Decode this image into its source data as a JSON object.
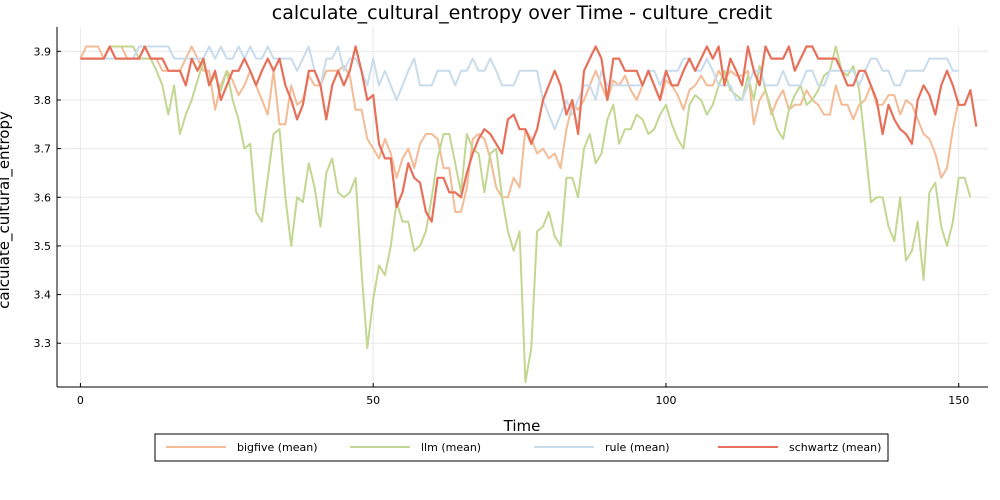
{
  "chart_data": {
    "type": "line",
    "title": "calculate_cultural_entropy over Time - culture_credit",
    "xlabel": "Time",
    "ylabel": "calculate_cultural_entropy",
    "xlim": [
      -4,
      155
    ],
    "ylim": [
      3.21,
      3.95
    ],
    "xticks": [
      0,
      50,
      100,
      150
    ],
    "yticks": [
      3.3,
      3.4,
      3.5,
      3.6,
      3.7,
      3.8,
      3.9
    ],
    "grid": true,
    "legend_position": "bottom",
    "series": [
      {
        "name": "bigfive (mean)",
        "color": "#f4bb95",
        "values": [
          3.885,
          3.91,
          3.91,
          3.91,
          3.885,
          3.91,
          3.91,
          3.91,
          3.885,
          3.885,
          3.885,
          3.885,
          3.885,
          3.885,
          3.86,
          3.86,
          3.86,
          3.86,
          3.885,
          3.91,
          3.885,
          3.86,
          3.86,
          3.78,
          3.83,
          3.86,
          3.84,
          3.81,
          3.83,
          3.86,
          3.83,
          3.8,
          3.77,
          3.86,
          3.75,
          3.75,
          3.83,
          3.79,
          3.8,
          3.85,
          3.83,
          3.83,
          3.86,
          3.86,
          3.86,
          3.87,
          3.85,
          3.78,
          3.78,
          3.72,
          3.7,
          3.68,
          3.72,
          3.69,
          3.64,
          3.68,
          3.7,
          3.66,
          3.71,
          3.73,
          3.73,
          3.72,
          3.66,
          3.66,
          3.57,
          3.57,
          3.62,
          3.72,
          3.73,
          3.72,
          3.68,
          3.62,
          3.6,
          3.6,
          3.64,
          3.62,
          3.74,
          3.72,
          3.69,
          3.7,
          3.68,
          3.69,
          3.66,
          3.74,
          3.79,
          3.78,
          3.8,
          3.83,
          3.86,
          3.83,
          3.8,
          3.84,
          3.83,
          3.85,
          3.82,
          3.8,
          3.83,
          3.86,
          3.83,
          3.8,
          3.84,
          3.83,
          3.81,
          3.78,
          3.82,
          3.83,
          3.85,
          3.83,
          3.83,
          3.86,
          3.84,
          3.86,
          3.85,
          3.85,
          3.86,
          3.75,
          3.8,
          3.82,
          3.77,
          3.8,
          3.82,
          3.78,
          3.79,
          3.79,
          3.82,
          3.8,
          3.79,
          3.77,
          3.77,
          3.83,
          3.79,
          3.79,
          3.76,
          3.79,
          3.8,
          3.83,
          3.79,
          3.79,
          3.81,
          3.81,
          3.77,
          3.8,
          3.79,
          3.76,
          3.73,
          3.72,
          3.69,
          3.64,
          3.66,
          3.74,
          3.8
        ]
      },
      {
        "name": "llm (mean)",
        "color": "#c2d791",
        "values": [
          3.885,
          3.885,
          3.885,
          3.885,
          3.885,
          3.91,
          3.91,
          3.91,
          3.91,
          3.91,
          3.885,
          3.885,
          3.885,
          3.86,
          3.83,
          3.77,
          3.83,
          3.73,
          3.77,
          3.8,
          3.84,
          3.88,
          3.83,
          3.85,
          3.82,
          3.86,
          3.8,
          3.76,
          3.7,
          3.71,
          3.57,
          3.55,
          3.64,
          3.73,
          3.74,
          3.6,
          3.5,
          3.6,
          3.59,
          3.67,
          3.62,
          3.54,
          3.65,
          3.68,
          3.61,
          3.6,
          3.61,
          3.64,
          3.45,
          3.29,
          3.39,
          3.46,
          3.44,
          3.5,
          3.59,
          3.55,
          3.55,
          3.49,
          3.5,
          3.53,
          3.6,
          3.68,
          3.73,
          3.73,
          3.67,
          3.61,
          3.73,
          3.7,
          3.69,
          3.61,
          3.69,
          3.7,
          3.6,
          3.53,
          3.49,
          3.53,
          3.22,
          3.29,
          3.53,
          3.54,
          3.57,
          3.52,
          3.5,
          3.64,
          3.64,
          3.6,
          3.7,
          3.73,
          3.67,
          3.69,
          3.76,
          3.79,
          3.71,
          3.74,
          3.74,
          3.77,
          3.76,
          3.73,
          3.74,
          3.77,
          3.79,
          3.75,
          3.72,
          3.7,
          3.79,
          3.81,
          3.8,
          3.77,
          3.79,
          3.83,
          3.86,
          3.82,
          3.81,
          3.8,
          3.85,
          3.8,
          3.87,
          3.82,
          3.78,
          3.74,
          3.72,
          3.78,
          3.81,
          3.83,
          3.79,
          3.8,
          3.82,
          3.85,
          3.86,
          3.91,
          3.86,
          3.85,
          3.87,
          3.82,
          3.71,
          3.59,
          3.6,
          3.6,
          3.54,
          3.51,
          3.6,
          3.47,
          3.49,
          3.55,
          3.43,
          3.61,
          3.63,
          3.54,
          3.5,
          3.55,
          3.64,
          3.64,
          3.6
        ]
      },
      {
        "name": "rule (mean)",
        "color": "#c8dcec",
        "values": [
          3.885,
          3.885,
          3.885,
          3.885,
          3.885,
          3.885,
          3.885,
          3.885,
          3.885,
          3.885,
          3.91,
          3.91,
          3.91,
          3.91,
          3.91,
          3.91,
          3.885,
          3.885,
          3.885,
          3.885,
          3.885,
          3.885,
          3.91,
          3.885,
          3.91,
          3.885,
          3.885,
          3.91,
          3.885,
          3.91,
          3.885,
          3.885,
          3.91,
          3.885,
          3.885,
          3.885,
          3.885,
          3.86,
          3.885,
          3.91,
          3.86,
          3.83,
          3.885,
          3.885,
          3.91,
          3.86,
          3.885,
          3.885,
          3.86,
          3.83,
          3.885,
          3.83,
          3.86,
          3.83,
          3.8,
          3.83,
          3.86,
          3.885,
          3.83,
          3.83,
          3.83,
          3.86,
          3.86,
          3.86,
          3.83,
          3.86,
          3.86,
          3.885,
          3.86,
          3.86,
          3.885,
          3.86,
          3.83,
          3.83,
          3.83,
          3.86,
          3.86,
          3.86,
          3.86,
          3.8,
          3.77,
          3.74,
          3.77,
          3.8,
          3.77,
          3.8,
          3.83,
          3.83,
          3.8,
          3.86,
          3.83,
          3.83,
          3.83,
          3.83,
          3.83,
          3.83,
          3.83,
          3.86,
          3.86,
          3.83,
          3.86,
          3.86,
          3.86,
          3.885,
          3.885,
          3.86,
          3.86,
          3.885,
          3.86,
          3.83,
          3.83,
          3.83,
          3.8,
          3.8,
          3.83,
          3.86,
          3.86,
          3.83,
          3.83,
          3.83,
          3.86,
          3.83,
          3.83,
          3.83,
          3.86,
          3.86,
          3.83,
          3.83,
          3.86,
          3.86,
          3.86,
          3.86,
          3.86,
          3.83,
          3.86,
          3.885,
          3.885,
          3.86,
          3.86,
          3.83,
          3.83,
          3.86,
          3.86,
          3.86,
          3.86,
          3.885,
          3.885,
          3.885,
          3.885,
          3.86,
          3.86
        ]
      },
      {
        "name": "schwartz (mean)",
        "color": "#e7705a",
        "values": [
          3.885,
          3.885,
          3.885,
          3.885,
          3.885,
          3.91,
          3.885,
          3.885,
          3.885,
          3.885,
          3.885,
          3.91,
          3.885,
          3.885,
          3.885,
          3.86,
          3.86,
          3.86,
          3.83,
          3.885,
          3.86,
          3.885,
          3.83,
          3.86,
          3.8,
          3.83,
          3.86,
          3.86,
          3.885,
          3.86,
          3.83,
          3.86,
          3.885,
          3.86,
          3.885,
          3.83,
          3.8,
          3.76,
          3.79,
          3.86,
          3.86,
          3.83,
          3.76,
          3.83,
          3.86,
          3.83,
          3.86,
          3.91,
          3.86,
          3.8,
          3.81,
          3.71,
          3.68,
          3.68,
          3.58,
          3.61,
          3.67,
          3.64,
          3.63,
          3.57,
          3.55,
          3.64,
          3.64,
          3.61,
          3.61,
          3.6,
          3.65,
          3.69,
          3.72,
          3.74,
          3.73,
          3.71,
          3.69,
          3.76,
          3.77,
          3.74,
          3.74,
          3.71,
          3.74,
          3.8,
          3.83,
          3.86,
          3.83,
          3.77,
          3.8,
          3.73,
          3.86,
          3.885,
          3.91,
          3.885,
          3.8,
          3.885,
          3.885,
          3.86,
          3.86,
          3.86,
          3.83,
          3.86,
          3.83,
          3.8,
          3.86,
          3.83,
          3.83,
          3.86,
          3.885,
          3.86,
          3.885,
          3.91,
          3.885,
          3.91,
          3.83,
          3.885,
          3.86,
          3.83,
          3.91,
          3.86,
          3.83,
          3.91,
          3.885,
          3.885,
          3.885,
          3.91,
          3.86,
          3.885,
          3.91,
          3.91,
          3.885,
          3.885,
          3.885,
          3.885,
          3.86,
          3.83,
          3.83,
          3.86,
          3.86,
          3.83,
          3.8,
          3.73,
          3.79,
          3.76,
          3.74,
          3.73,
          3.71,
          3.8,
          3.83,
          3.81,
          3.77,
          3.83,
          3.86,
          3.83,
          3.79,
          3.79,
          3.82,
          3.745
        ]
      }
    ]
  }
}
